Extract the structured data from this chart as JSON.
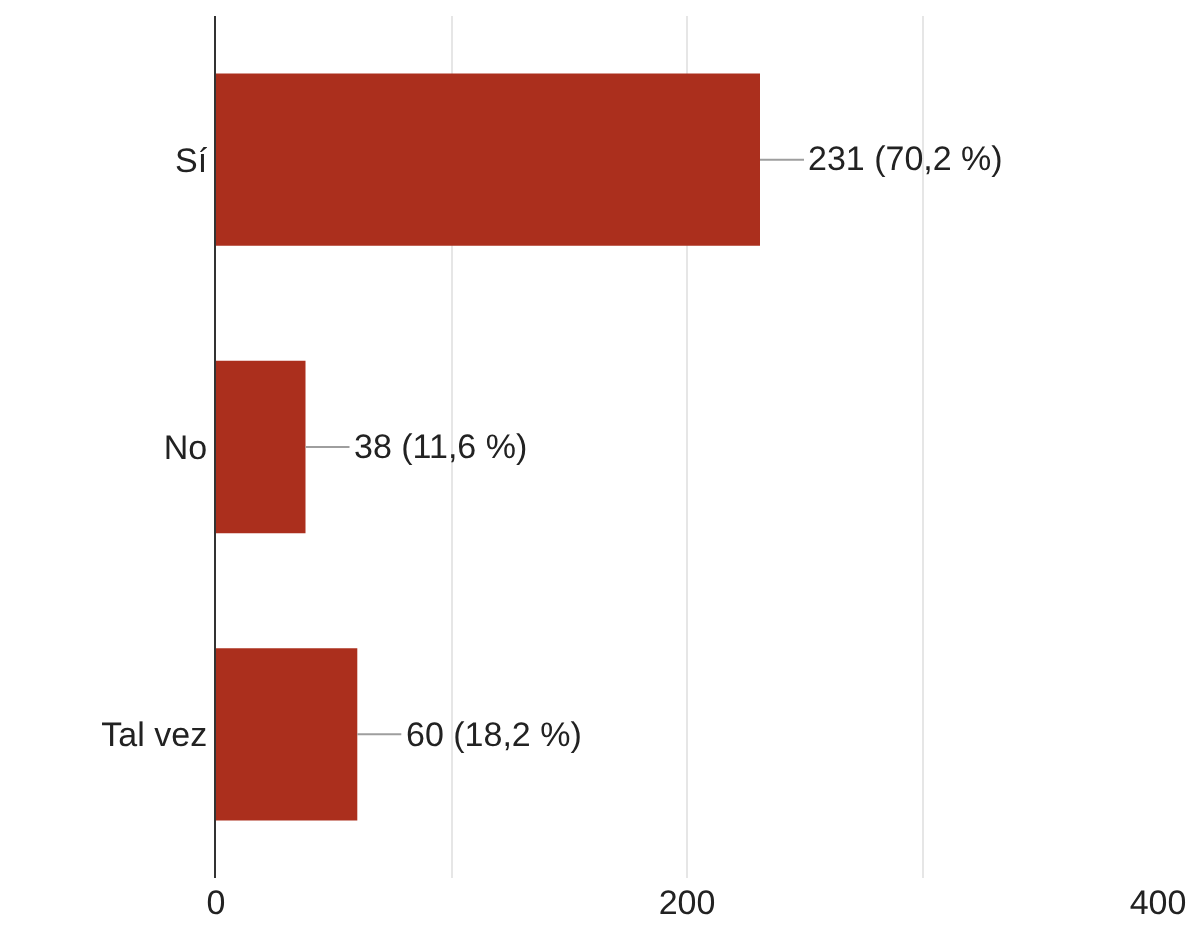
{
  "chart_data": {
    "type": "bar",
    "orientation": "horizontal",
    "categories": [
      "Sí",
      "No",
      "Tal vez"
    ],
    "values": [
      231,
      38,
      60
    ],
    "value_labels": [
      "231 (70,2 %)",
      "38 (11,6 %)",
      "60 (18,2 %)"
    ],
    "color": "#ab2f1d",
    "xlim": [
      0,
      400
    ],
    "xticks": [
      0,
      {
        "value": 100,
        "label": null
      },
      200,
      {
        "value": 300,
        "label": null
      },
      400
    ],
    "grid": "x"
  }
}
